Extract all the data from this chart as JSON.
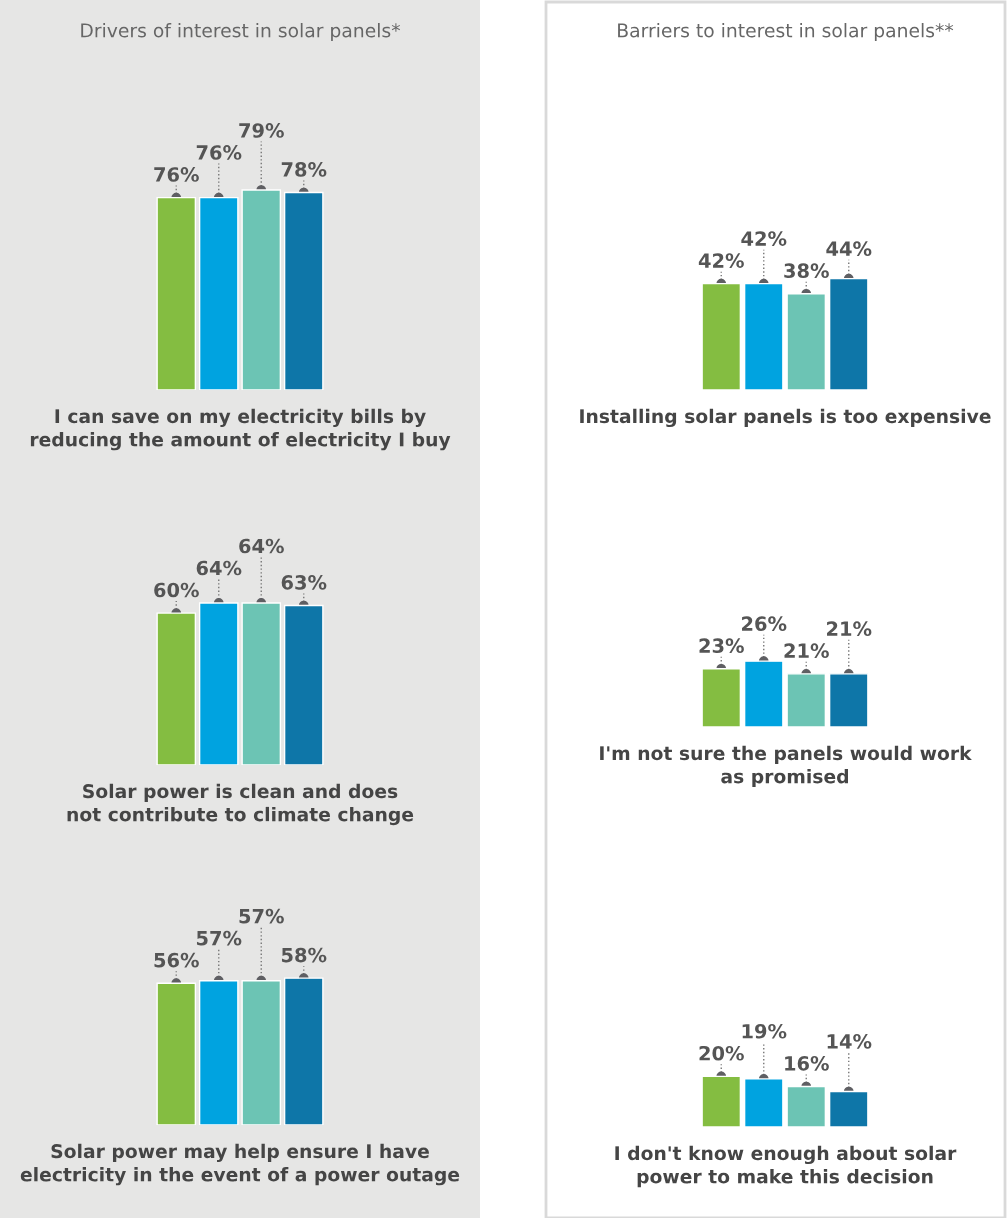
{
  "chart_data": [
    {
      "type": "bar",
      "title": "Drivers of interest in solar panels*",
      "xlabel": "I can save on my electricity bills by\nreducing the amount of electricity I buy",
      "categories": [
        null,
        null,
        null,
        null
      ],
      "values": [
        76,
        76,
        79,
        78
      ],
      "colors": [
        "#84bd41",
        "#00a3e0",
        "#6cc4b4",
        "#0e76a8"
      ],
      "value_labels": [
        "76%",
        "76%",
        "79%",
        "78%"
      ]
    },
    {
      "type": "bar",
      "xlabel": "Solar power is clean and does\nnot contribute to climate change",
      "categories": [
        null,
        null,
        null,
        null
      ],
      "values": [
        60,
        64,
        64,
        63
      ],
      "colors": [
        "#84bd41",
        "#00a3e0",
        "#6cc4b4",
        "#0e76a8"
      ],
      "value_labels": [
        "60%",
        "64%",
        "64%",
        "63%"
      ]
    },
    {
      "type": "bar",
      "xlabel": "Solar power may help ensure I have\nelectricity in the event of a power outage",
      "categories": [
        null,
        null,
        null,
        null
      ],
      "values": [
        56,
        57,
        57,
        58
      ],
      "colors": [
        "#84bd41",
        "#00a3e0",
        "#6cc4b4",
        "#0e76a8"
      ],
      "value_labels": [
        "56%",
        "57%",
        "57%",
        "58%"
      ]
    },
    {
      "type": "bar",
      "title": "Barriers to interest in solar panels**",
      "xlabel": "Installing solar panels is too expensive",
      "categories": [
        null,
        null,
        null,
        null
      ],
      "values": [
        42,
        42,
        38,
        44
      ],
      "colors": [
        "#84bd41",
        "#00a3e0",
        "#6cc4b4",
        "#0e76a8"
      ],
      "value_labels": [
        "42%",
        "42%",
        "38%",
        "44%"
      ]
    },
    {
      "type": "bar",
      "xlabel": "I'm not sure the panels would work\nas promised",
      "categories": [
        null,
        null,
        null,
        null
      ],
      "values": [
        23,
        26,
        21,
        21
      ],
      "colors": [
        "#84bd41",
        "#00a3e0",
        "#6cc4b4",
        "#0e76a8"
      ],
      "value_labels": [
        "23%",
        "26%",
        "21%",
        "21%"
      ]
    },
    {
      "type": "bar",
      "xlabel": "I don't know enough about solar\npower to make this decision",
      "categories": [
        null,
        null,
        null,
        null
      ],
      "values": [
        20,
        19,
        16,
        14
      ],
      "colors": [
        "#84bd41",
        "#00a3e0",
        "#6cc4b4",
        "#0e76a8"
      ],
      "value_labels": [
        "20%",
        "19%",
        "16%",
        "14%"
      ]
    }
  ]
}
